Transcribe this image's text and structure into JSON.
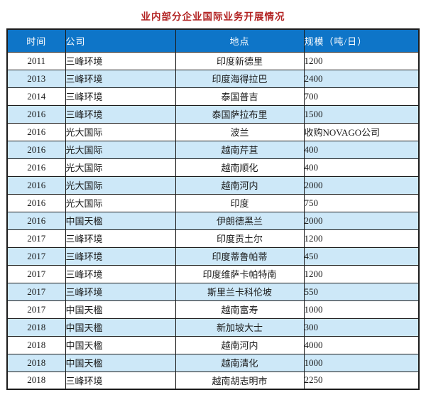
{
  "title": "业内部分企业国际业务开展情况",
  "chart_data": {
    "type": "table",
    "title": "业内部分企业国际业务开展情况",
    "columns": [
      "时间",
      "公司",
      "地点",
      "规模（吨/日）"
    ],
    "rows": [
      [
        "2011",
        "三峰环境",
        "印度新德里",
        "1200"
      ],
      [
        "2013",
        "三峰环境",
        "印度海得拉巴",
        "2400"
      ],
      [
        "2014",
        "三峰环境",
        "泰国普吉",
        "700"
      ],
      [
        "2016",
        "三峰环境",
        "泰国萨拉布里",
        "1500"
      ],
      [
        "2016",
        "光大国际",
        "波兰",
        "收购NOVAGO公司"
      ],
      [
        "2016",
        "光大国际",
        "越南芹苴",
        "400"
      ],
      [
        "2016",
        "光大国际",
        "越南顺化",
        "400"
      ],
      [
        "2016",
        "光大国际",
        "越南河内",
        "2000"
      ],
      [
        "2016",
        "光大国际",
        "印度",
        "750"
      ],
      [
        "2016",
        "中国天楹",
        "伊朗德黑兰",
        "2000"
      ],
      [
        "2017",
        "三峰环境",
        "印度贡土尔",
        "1200"
      ],
      [
        "2017",
        "三峰环境",
        "印度蒂鲁帕蒂",
        "450"
      ],
      [
        "2017",
        "三峰环境",
        "印度维萨卡帕特南",
        "1200"
      ],
      [
        "2017",
        "三峰环境",
        "斯里兰卡科伦坡",
        "550"
      ],
      [
        "2017",
        "中国天楹",
        "越南富寿",
        "1000"
      ],
      [
        "2018",
        "中国天楹",
        "新加坡大士",
        "300"
      ],
      [
        "2018",
        "中国天楹",
        "越南河内",
        "4000"
      ],
      [
        "2018",
        "中国天楹",
        "越南清化",
        "1000"
      ],
      [
        "2018",
        "三峰环境",
        "越南胡志明市",
        "2250"
      ]
    ],
    "layout": {
      "alternating_rows": true,
      "first_data_row_background": "white",
      "column_alignment": [
        "center",
        "left",
        "center",
        "left"
      ]
    }
  },
  "colors": {
    "header_bg": "#0e75c8",
    "header_text": "#ffffff",
    "alt_row_bg": "#cde8f8",
    "row_bg": "#ffffff",
    "border": "#1c1c1c",
    "title": "#b22222",
    "body_text": "#1a1a1a"
  }
}
